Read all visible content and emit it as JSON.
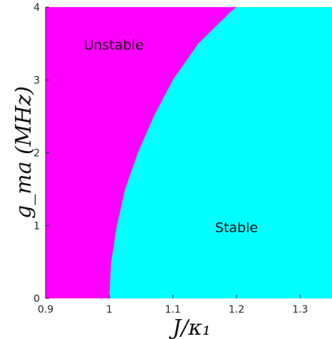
{
  "chart_data": {
    "type": "area",
    "xlabel": "J/κ₁",
    "ylabel": "g_ma (MHz)",
    "xlim": [
      0.9,
      1.35
    ],
    "ylim": [
      0,
      4
    ],
    "x_ticks": [
      "0.9",
      "1",
      "1.1",
      "1.2",
      "1.3"
    ],
    "y_ticks": [
      "0",
      "1",
      "2",
      "3",
      "4"
    ],
    "grid": false,
    "regions": [
      {
        "name": "Unstable",
        "color": "#ff00ff",
        "side": "left"
      },
      {
        "name": "Stable",
        "color": "#00ffff",
        "side": "right"
      }
    ],
    "boundary": {
      "x": [
        1.0,
        1.003,
        1.012,
        1.025,
        1.045,
        1.07,
        1.1,
        1.14,
        1.19,
        1.2
      ],
      "y": [
        0.0,
        0.5,
        1.0,
        1.5,
        2.0,
        2.5,
        3.0,
        3.5,
        3.93,
        4.0
      ]
    },
    "annotations": [
      {
        "text": "Unstable",
        "x": 0.96,
        "y": 3.42
      },
      {
        "text": "Stable",
        "x": 1.2,
        "y": 0.91
      }
    ]
  }
}
